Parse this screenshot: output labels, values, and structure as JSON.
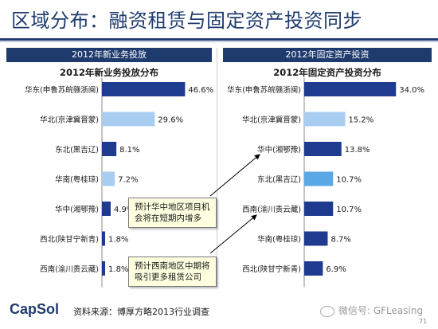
{
  "title": "区域分布：融资租赁与固定资产投资同步",
  "left_panel": {
    "header": "2012年新业务投放",
    "subtitle": "2012年新业务投放分布"
  },
  "right_panel": {
    "header": "2012年固定资产投资",
    "subtitle": "2012年固定资产投资分布"
  },
  "chart_data": [
    {
      "type": "bar",
      "orientation": "horizontal",
      "categories": [
        "华东(申鲁苏皖赣浙闽)",
        "华北(京津冀晋蒙)",
        "东北(黑吉辽)",
        "华南(粤桂琼)",
        "华中(湘鄂豫)",
        "西北(陕甘宁新青)",
        "西南(渝川贵云藏)"
      ],
      "values": [
        46.6,
        29.6,
        8.1,
        7.2,
        4.9,
        1.8,
        1.8
      ],
      "labels": [
        "46.6%",
        "29.6%",
        "8.1%",
        "7.2%",
        "4.9%",
        "1.8%",
        "1.8%"
      ],
      "colors": [
        "#1f3b8f",
        "#a9cdf0",
        "#1f3b8f",
        "#a9cdf0",
        "#1f3b8f",
        "#1f3b8f",
        "#1f3b8f"
      ],
      "xlim": [
        0,
        50
      ],
      "grid": false
    },
    {
      "type": "bar",
      "orientation": "horizontal",
      "categories": [
        "华东(申鲁苏皖赣浙闽)",
        "华北(京津冀晋蒙)",
        "华中(湘鄂豫)",
        "东北(黑吉辽)",
        "西南(渝川贵云藏)",
        "华南(粤桂琼)",
        "西北(陕甘宁新青)"
      ],
      "values": [
        34.0,
        15.2,
        13.8,
        10.7,
        10.7,
        8.7,
        6.9
      ],
      "labels": [
        "34.0%",
        "15.2%",
        "13.8%",
        "10.7%",
        "10.7%",
        "8.7%",
        "6.9%"
      ],
      "colors": [
        "#1f3b8f",
        "#a9cdf0",
        "#1f3b8f",
        "#5aa8e6",
        "#1f3b8f",
        "#1f3b8f",
        "#1f3b8f"
      ],
      "xlim": [
        0,
        36
      ],
      "grid": false
    }
  ],
  "callouts": [
    "预计华中地区项目机会将在短期内增多",
    "预计西南地区中期将吸引更多租赁公司"
  ],
  "footer": {
    "logo": "CapSol",
    "source": "资料来源：博厚方略2013行业调查",
    "watermark": "微信号: GFLeasing",
    "page": "71"
  }
}
